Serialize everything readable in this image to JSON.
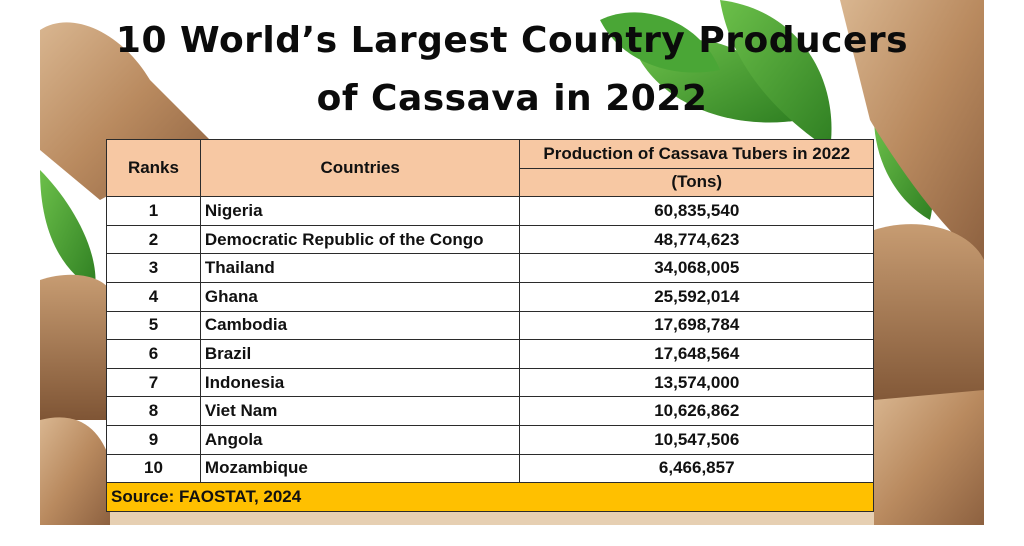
{
  "title": {
    "line1": "10 World’s Largest Country Producers",
    "line2": "of Cassava in 2022"
  },
  "table": {
    "headers": {
      "rank": "Ranks",
      "country": "Countries",
      "production": "Production of Cassava Tubers in 2022",
      "unit": "(Tons)"
    },
    "rows": [
      {
        "rank": "1",
        "country": "Nigeria",
        "production": "60,835,540"
      },
      {
        "rank": "2",
        "country": "Democratic Republic of the Congo",
        "production": "48,774,623"
      },
      {
        "rank": "3",
        "country": "Thailand",
        "production": "34,068,005"
      },
      {
        "rank": "4",
        "country": "Ghana",
        "production": "25,592,014"
      },
      {
        "rank": "5",
        "country": "Cambodia",
        "production": "17,698,784"
      },
      {
        "rank": "6",
        "country": "Brazil",
        "production": "17,648,564"
      },
      {
        "rank": "7",
        "country": "Indonesia",
        "production": "13,574,000"
      },
      {
        "rank": "8",
        "country": "Viet Nam",
        "production": "10,626,862"
      },
      {
        "rank": "9",
        "country": "Angola",
        "production": "10,547,506"
      },
      {
        "rank": "10",
        "country": "Mozambique",
        "production": "6,466,857"
      }
    ],
    "source": "Source: FAOSTAT, 2024"
  },
  "colors": {
    "header_bg": "#f7c8a3",
    "source_bg": "#ffc000",
    "leaf_green": "#3f9a2e",
    "cassava_skin": "#b78a63"
  }
}
